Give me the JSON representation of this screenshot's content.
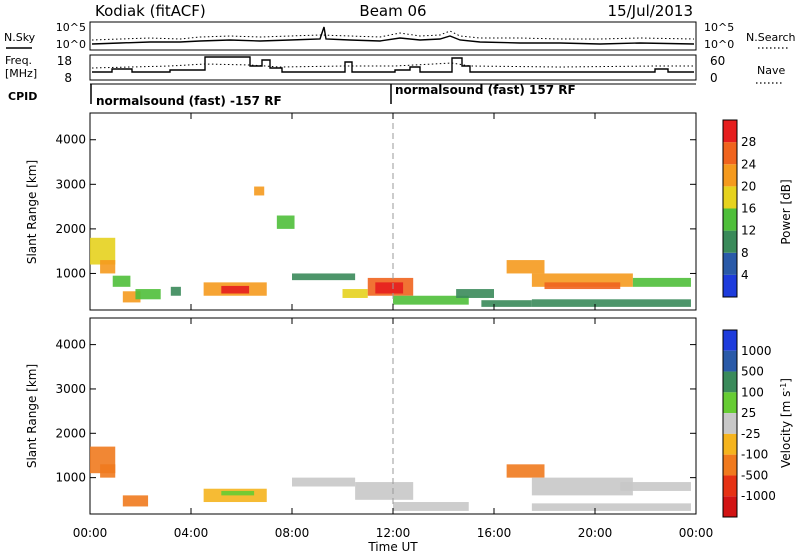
{
  "header": {
    "title": "Kodiak (fitACF)",
    "beam": "Beam 06",
    "date": "15/Jul/2013"
  },
  "top_panel": {
    "nsky_label": "N.Sky",
    "nsearch_label": "N.Search",
    "noise_ticks_left": [
      "10^5",
      "10^0"
    ],
    "noise_ticks_right": [
      "10^5",
      "10^0"
    ],
    "freq_label_line1": "Freq.",
    "freq_label_line2": "[MHz]",
    "freq_ticks": [
      "18",
      "8"
    ],
    "nave_label": "Nave",
    "nave_ticks": [
      "60",
      "0"
    ],
    "cpid_label": "CPID",
    "modes": [
      "normalsound (fast) -157 RF",
      "normalsound (fast) 157 RF"
    ]
  },
  "axes": {
    "xlabel": "Time UT",
    "x_ticks": [
      "00:00",
      "04:00",
      "08:00",
      "12:00",
      "16:00",
      "20:00",
      "00:00"
    ],
    "ylabel": "Slant Range [km]",
    "y_ticks": [
      "1000",
      "2000",
      "3000",
      "4000"
    ]
  },
  "power_scale": {
    "label": "Power [dB]",
    "ticks": [
      "4",
      "8",
      "12",
      "16",
      "20",
      "24",
      "28"
    ],
    "colors": [
      "#1e3cdc",
      "#2a5aa8",
      "#3a8a5a",
      "#4fbf3a",
      "#e6d21e",
      "#f59a1e",
      "#f0641e",
      "#e61e1e"
    ]
  },
  "velocity_scale": {
    "label": "Velocity",
    "unit": "[m s",
    "unit_exp": "-1",
    "unit_close": "]",
    "ticks": [
      "1000",
      "500",
      "100",
      "25",
      "-25",
      "-100",
      "-500",
      "-1000"
    ],
    "colors": [
      "#1e3cdc",
      "#2a5aa8",
      "#3a8a5a",
      "#66cc33",
      "#c8c8c8",
      "#f5b41e",
      "#f07a1e",
      "#e63214",
      "#d21414"
    ]
  },
  "chart_data": [
    {
      "type": "heatmap",
      "title": "Power",
      "xlim": [
        0,
        24
      ],
      "ylim": [
        180,
        4600
      ],
      "clim": [
        0,
        30
      ],
      "cells": [
        [
          0.0,
          1.0,
          1200,
          1800,
          18
        ],
        [
          0.4,
          1.0,
          1000,
          1300,
          22
        ],
        [
          0.9,
          1.6,
          700,
          950,
          12
        ],
        [
          1.3,
          2.0,
          350,
          600,
          20
        ],
        [
          1.8,
          2.8,
          420,
          650,
          14
        ],
        [
          3.2,
          3.6,
          500,
          700,
          10
        ],
        [
          4.5,
          7.0,
          500,
          800,
          22
        ],
        [
          5.2,
          6.3,
          550,
          720,
          28
        ],
        [
          6.5,
          6.9,
          2750,
          2950,
          20
        ],
        [
          7.4,
          8.1,
          2000,
          2300,
          12
        ],
        [
          8.0,
          10.5,
          850,
          1000,
          10
        ],
        [
          10.0,
          11.0,
          450,
          650,
          18
        ],
        [
          11.0,
          12.8,
          500,
          900,
          24
        ],
        [
          11.3,
          12.4,
          550,
          800,
          28
        ],
        [
          12.0,
          15.0,
          300,
          500,
          14
        ],
        [
          14.5,
          16.0,
          450,
          650,
          10
        ],
        [
          15.5,
          17.5,
          250,
          400,
          8
        ],
        [
          16.5,
          18.0,
          1000,
          1300,
          22
        ],
        [
          17.5,
          21.5,
          700,
          1000,
          20
        ],
        [
          18.0,
          21.0,
          650,
          800,
          26
        ],
        [
          17.5,
          23.8,
          250,
          420,
          8
        ],
        [
          21.5,
          23.8,
          700,
          900,
          14
        ]
      ]
    },
    {
      "type": "heatmap",
      "title": "Velocity",
      "xlim": [
        0,
        24
      ],
      "ylim": [
        180,
        4600
      ],
      "clim": [
        -1000,
        1000
      ],
      "cells": [
        [
          0.0,
          1.0,
          1100,
          1700,
          -200
        ],
        [
          0.4,
          1.0,
          1000,
          1300,
          -150
        ],
        [
          1.3,
          2.3,
          350,
          600,
          -120
        ],
        [
          4.5,
          7.0,
          450,
          750,
          -80
        ],
        [
          5.2,
          6.5,
          600,
          700,
          60
        ],
        [
          8.0,
          10.5,
          800,
          1000,
          0
        ],
        [
          10.5,
          12.8,
          500,
          900,
          10
        ],
        [
          12.0,
          15.0,
          250,
          450,
          0
        ],
        [
          16.5,
          18.0,
          1000,
          1300,
          -300
        ],
        [
          17.5,
          21.5,
          600,
          1000,
          5
        ],
        [
          17.5,
          23.8,
          250,
          420,
          0
        ],
        [
          21.0,
          23.8,
          700,
          900,
          15
        ]
      ]
    }
  ]
}
